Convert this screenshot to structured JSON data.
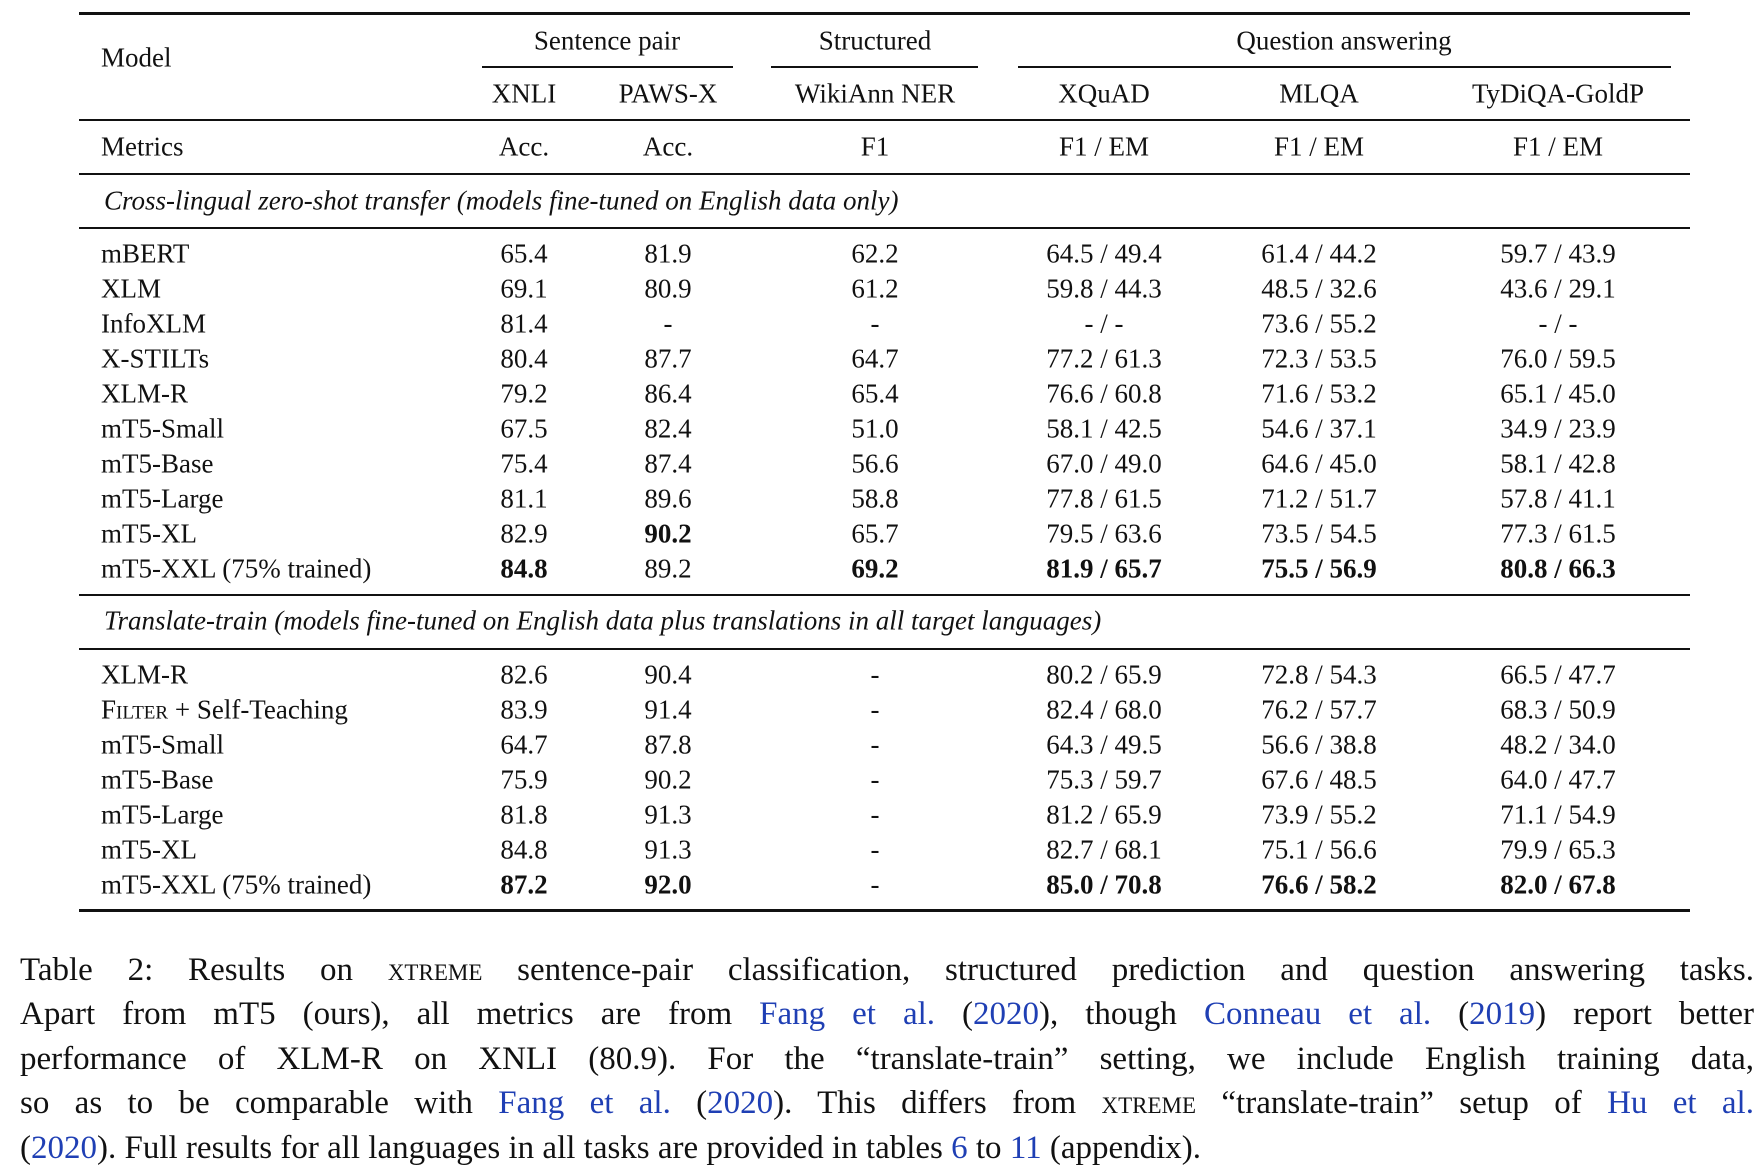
{
  "header": {
    "model_label": "Model",
    "groups": [
      "Sentence pair",
      "Structured",
      "Question answering"
    ],
    "columns": [
      "XNLI",
      "PAWS-X",
      "WikiAnn NER",
      "XQuAD",
      "MLQA",
      "TyDiQA-GoldP"
    ],
    "metrics_label": "Metrics",
    "metrics": [
      "Acc.",
      "Acc.",
      "F1",
      "F1 / EM",
      "F1 / EM",
      "F1 / EM"
    ]
  },
  "sections": [
    {
      "title": "Cross-lingual zero-shot transfer (models fine-tuned on English data only)",
      "rows": [
        {
          "model": "mBERT",
          "cells": [
            "65.4",
            "81.9",
            "62.2",
            "64.5 / 49.4",
            "61.4 / 44.2",
            "59.7 / 43.9"
          ],
          "bold": []
        },
        {
          "model": "XLM",
          "cells": [
            "69.1",
            "80.9",
            "61.2",
            "59.8 / 44.3",
            "48.5 / 32.6",
            "43.6 / 29.1"
          ],
          "bold": []
        },
        {
          "model": "InfoXLM",
          "cells": [
            "81.4",
            "-",
            "-",
            "- / -",
            "73.6 / 55.2",
            "- / -"
          ],
          "bold": []
        },
        {
          "model": "X-STILTs",
          "cells": [
            "80.4",
            "87.7",
            "64.7",
            "77.2 / 61.3",
            "72.3 / 53.5",
            "76.0 / 59.5"
          ],
          "bold": []
        },
        {
          "model": "XLM-R",
          "cells": [
            "79.2",
            "86.4",
            "65.4",
            "76.6 / 60.8",
            "71.6 / 53.2",
            "65.1 / 45.0"
          ],
          "bold": []
        },
        {
          "model": "mT5-Small",
          "cells": [
            "67.5",
            "82.4",
            "51.0",
            "58.1 / 42.5",
            "54.6 / 37.1",
            "34.9 / 23.9"
          ],
          "bold": []
        },
        {
          "model": "mT5-Base",
          "cells": [
            "75.4",
            "87.4",
            "56.6",
            "67.0 / 49.0",
            "64.6 / 45.0",
            "58.1 / 42.8"
          ],
          "bold": []
        },
        {
          "model": "mT5-Large",
          "cells": [
            "81.1",
            "89.6",
            "58.8",
            "77.8 / 61.5",
            "71.2 / 51.7",
            "57.8 / 41.1"
          ],
          "bold": []
        },
        {
          "model": "mT5-XL",
          "cells": [
            "82.9",
            "90.2",
            "65.7",
            "79.5 / 63.6",
            "73.5 / 54.5",
            "77.3 / 61.5"
          ],
          "bold": [
            1
          ]
        },
        {
          "model": "mT5-XXL (75% trained)",
          "cells": [
            "84.8",
            "89.2",
            "69.2",
            "81.9 / 65.7",
            "75.5 / 56.9",
            "80.8 / 66.3"
          ],
          "bold": [
            0,
            2,
            3,
            4,
            5
          ]
        }
      ]
    },
    {
      "title": "Translate-train (models fine-tuned on English data plus translations in all target languages)",
      "rows": [
        {
          "model": "XLM-R",
          "cells": [
            "82.6",
            "90.4",
            "-",
            "80.2 / 65.9",
            "72.8 / 54.3",
            "66.5 / 47.7"
          ],
          "bold": []
        },
        {
          "model": "Filter + Self-Teaching",
          "smallcaps_prefix": "Filter",
          "cells": [
            "83.9",
            "91.4",
            "-",
            "82.4 / 68.0",
            "76.2 / 57.7",
            "68.3 / 50.9"
          ],
          "bold": []
        },
        {
          "model": "mT5-Small",
          "cells": [
            "64.7",
            "87.8",
            "-",
            "64.3 / 49.5",
            "56.6 / 38.8",
            "48.2 / 34.0"
          ],
          "bold": []
        },
        {
          "model": "mT5-Base",
          "cells": [
            "75.9",
            "90.2",
            "-",
            "75.3 / 59.7",
            "67.6 / 48.5",
            "64.0 / 47.7"
          ],
          "bold": []
        },
        {
          "model": "mT5-Large",
          "cells": [
            "81.8",
            "91.3",
            "-",
            "81.2 / 65.9",
            "73.9 / 55.2",
            "71.1 / 54.9"
          ],
          "bold": []
        },
        {
          "model": "mT5-XL",
          "cells": [
            "84.8",
            "91.3",
            "-",
            "82.7 / 68.1",
            "75.1 / 56.6",
            "79.9 / 65.3"
          ],
          "bold": []
        },
        {
          "model": "mT5-XXL (75% trained)",
          "cells": [
            "87.2",
            "92.0",
            "-",
            "85.0 / 70.8",
            "76.6 / 58.2",
            "82.0 / 67.8"
          ],
          "bold": [
            0,
            1,
            3,
            4,
            5
          ]
        }
      ]
    }
  ],
  "caption": [
    [
      {
        "t": "Table 2: Results on "
      },
      {
        "t": "xtreme",
        "sc": true
      },
      {
        "t": " sentence-pair classification, structured prediction and question answering tasks."
      }
    ],
    [
      {
        "t": "Apart from mT5 (ours), all metrics are from "
      },
      {
        "t": "Fang et al.",
        "link": true
      },
      {
        "t": " ("
      },
      {
        "t": "2020",
        "link": true
      },
      {
        "t": "), though "
      },
      {
        "t": "Conneau et al.",
        "link": true
      },
      {
        "t": " ("
      },
      {
        "t": "2019",
        "link": true
      },
      {
        "t": ") report better"
      }
    ],
    [
      {
        "t": "performance of XLM-R on XNLI (80.9). For the “translate-train” setting, we include English training data,"
      }
    ],
    [
      {
        "t": "so as to be comparable with "
      },
      {
        "t": "Fang et al.",
        "link": true
      },
      {
        "t": " ("
      },
      {
        "t": "2020",
        "link": true
      },
      {
        "t": "). This differs from "
      },
      {
        "t": "xtreme",
        "sc": true
      },
      {
        "t": " “translate-train” setup of "
      },
      {
        "t": "Hu et al.",
        "link": true
      }
    ],
    [
      {
        "t": "("
      },
      {
        "t": "2020",
        "link": true
      },
      {
        "t": "). Full results for all languages in all tasks are provided in tables "
      },
      {
        "t": "6",
        "link": true
      },
      {
        "t": " to "
      },
      {
        "t": "11",
        "link": true
      },
      {
        "t": " (appendix)."
      }
    ]
  ]
}
